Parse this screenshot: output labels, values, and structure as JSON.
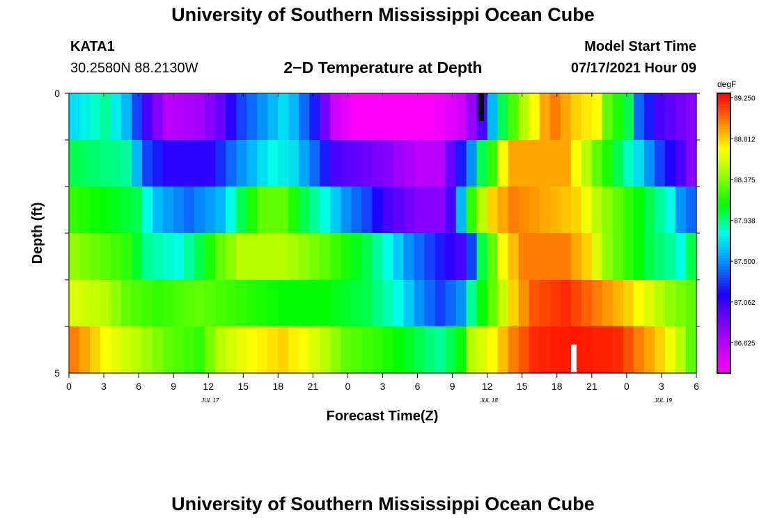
{
  "header": {
    "title_top": "University of Southern Mississippi Ocean Cube",
    "title_bottom": "University of Southern Mississippi Ocean Cube",
    "station": "KATA1",
    "coords": "30.2580N  88.2130W",
    "plot_title": "2−D Temperature at Depth",
    "model_label": "Model Start Time",
    "model_time": "07/17/2021 Hour 09"
  },
  "chart_data": {
    "type": "heatmap",
    "title": "2−D Temperature at Depth",
    "xlabel": "Forecast Time(Z)",
    "ylabel": "Depth (ft)",
    "x_tick_labels": [
      "0",
      "3",
      "6",
      "9",
      "12",
      "15",
      "18",
      "21",
      "0",
      "3",
      "6",
      "9",
      "12",
      "15",
      "18",
      "21",
      "0",
      "3",
      "6"
    ],
    "date_labels": [
      "JUL 17",
      "JUL 18",
      "JUL 19"
    ],
    "y_tick_labels": [
      "0",
      "5"
    ],
    "ylim": [
      0,
      5
    ],
    "colorbar": {
      "unit": "degF",
      "tick_labels": [
        "89.250",
        "88.812",
        "88.375",
        "87.938",
        "87.500",
        "87.062",
        "86.625"
      ],
      "range": [
        86.3,
        89.3
      ]
    },
    "row_keyframes": [
      [
        [
          0,
          87.7
        ],
        [
          3,
          87.9
        ],
        [
          5,
          87.6
        ],
        [
          7,
          87.0
        ],
        [
          9,
          86.6
        ],
        [
          12,
          86.7
        ],
        [
          14,
          86.9
        ],
        [
          16,
          87.3
        ],
        [
          20,
          87.7
        ],
        [
          21,
          87.6
        ],
        [
          23,
          87.2
        ],
        [
          25,
          86.5
        ],
        [
          27,
          86.3
        ],
        [
          30,
          86.3
        ],
        [
          34,
          86.3
        ],
        [
          37,
          86.5
        ],
        [
          39,
          87.0
        ],
        [
          40,
          87.6
        ],
        [
          41,
          88.0
        ],
        [
          43,
          88.5
        ],
        [
          45,
          88.9
        ],
        [
          46,
          89.0
        ],
        [
          48,
          88.8
        ],
        [
          50,
          88.7
        ],
        [
          51,
          88.3
        ],
        [
          53,
          88.0
        ],
        [
          54,
          87.4
        ],
        [
          56,
          87.0
        ],
        [
          59,
          86.8
        ]
      ],
      [
        [
          0,
          88.0
        ],
        [
          5,
          87.9
        ],
        [
          7,
          87.3
        ],
        [
          9,
          87.1
        ],
        [
          13,
          87.1
        ],
        [
          15,
          87.4
        ],
        [
          17,
          87.6
        ],
        [
          19,
          87.8
        ],
        [
          21,
          87.7
        ],
        [
          23,
          87.4
        ],
        [
          25,
          87.0
        ],
        [
          30,
          86.8
        ],
        [
          33,
          86.6
        ],
        [
          35,
          86.6
        ],
        [
          36,
          86.9
        ],
        [
          38,
          87.5
        ],
        [
          39,
          88.0
        ],
        [
          40,
          88.2
        ],
        [
          41,
          88.7
        ],
        [
          42,
          88.9
        ],
        [
          47,
          88.9
        ],
        [
          48,
          88.7
        ],
        [
          50,
          88.3
        ],
        [
          52,
          88.0
        ],
        [
          54,
          87.7
        ],
        [
          56,
          87.3
        ],
        [
          58,
          87.0
        ],
        [
          59,
          86.8
        ]
      ],
      [
        [
          0,
          88.2
        ],
        [
          6,
          88.0
        ],
        [
          8,
          87.6
        ],
        [
          11,
          87.4
        ],
        [
          14,
          87.6
        ],
        [
          16,
          88.0
        ],
        [
          18,
          88.3
        ],
        [
          20,
          88.3
        ],
        [
          22,
          88.0
        ],
        [
          24,
          87.8
        ],
        [
          26,
          87.5
        ],
        [
          28,
          87.3
        ],
        [
          30,
          87.0
        ],
        [
          33,
          86.8
        ],
        [
          35,
          86.8
        ],
        [
          36,
          87.0
        ],
        [
          37,
          87.6
        ],
        [
          38,
          88.2
        ],
        [
          39,
          88.5
        ],
        [
          40,
          88.8
        ],
        [
          42,
          89.0
        ],
        [
          48,
          88.8
        ],
        [
          50,
          88.5
        ],
        [
          52,
          88.3
        ],
        [
          54,
          88.1
        ],
        [
          57,
          87.8
        ],
        [
          58,
          87.5
        ],
        [
          59,
          87.4
        ]
      ],
      [
        [
          0,
          88.4
        ],
        [
          5,
          88.2
        ],
        [
          7,
          87.9
        ],
        [
          10,
          87.8
        ],
        [
          12,
          88.0
        ],
        [
          14,
          88.3
        ],
        [
          16,
          88.5
        ],
        [
          20,
          88.5
        ],
        [
          24,
          88.3
        ],
        [
          28,
          88.0
        ],
        [
          30,
          87.8
        ],
        [
          32,
          87.5
        ],
        [
          35,
          87.2
        ],
        [
          37,
          87.0
        ],
        [
          38,
          87.3
        ],
        [
          39,
          88.0
        ],
        [
          40,
          88.3
        ],
        [
          41,
          88.7
        ],
        [
          43,
          89.0
        ],
        [
          47,
          89.0
        ],
        [
          49,
          88.8
        ],
        [
          51,
          88.4
        ],
        [
          53,
          88.2
        ],
        [
          55,
          88.0
        ],
        [
          57,
          87.9
        ],
        [
          58,
          87.8
        ],
        [
          59,
          88.0
        ]
      ],
      [
        [
          0,
          88.6
        ],
        [
          3,
          88.5
        ],
        [
          5,
          88.3
        ],
        [
          8,
          88.2
        ],
        [
          12,
          88.3
        ],
        [
          16,
          88.2
        ],
        [
          20,
          88.1
        ],
        [
          24,
          88.1
        ],
        [
          28,
          88.0
        ],
        [
          31,
          87.8
        ],
        [
          33,
          87.5
        ],
        [
          35,
          87.3
        ],
        [
          37,
          87.5
        ],
        [
          38,
          87.9
        ],
        [
          40,
          88.3
        ],
        [
          42,
          88.8
        ],
        [
          44,
          89.1
        ],
        [
          47,
          89.2
        ],
        [
          50,
          89.0
        ],
        [
          53,
          88.8
        ],
        [
          55,
          88.6
        ],
        [
          57,
          88.4
        ],
        [
          59,
          88.3
        ]
      ],
      [
        [
          0,
          89.0
        ],
        [
          3,
          88.7
        ],
        [
          6,
          88.5
        ],
        [
          9,
          88.3
        ],
        [
          12,
          88.2
        ],
        [
          14,
          88.5
        ],
        [
          17,
          88.7
        ],
        [
          20,
          88.8
        ],
        [
          23,
          88.6
        ],
        [
          26,
          88.3
        ],
        [
          29,
          88.2
        ],
        [
          31,
          88.1
        ],
        [
          33,
          88.0
        ],
        [
          35,
          87.9
        ],
        [
          37,
          88.1
        ],
        [
          38,
          88.5
        ],
        [
          40,
          88.7
        ],
        [
          42,
          89.0
        ],
        [
          44,
          89.2
        ],
        [
          48,
          89.25
        ],
        [
          52,
          89.2
        ],
        [
          54,
          89.0
        ],
        [
          56,
          88.8
        ],
        [
          58,
          88.5
        ],
        [
          59,
          88.3
        ]
      ]
    ]
  }
}
